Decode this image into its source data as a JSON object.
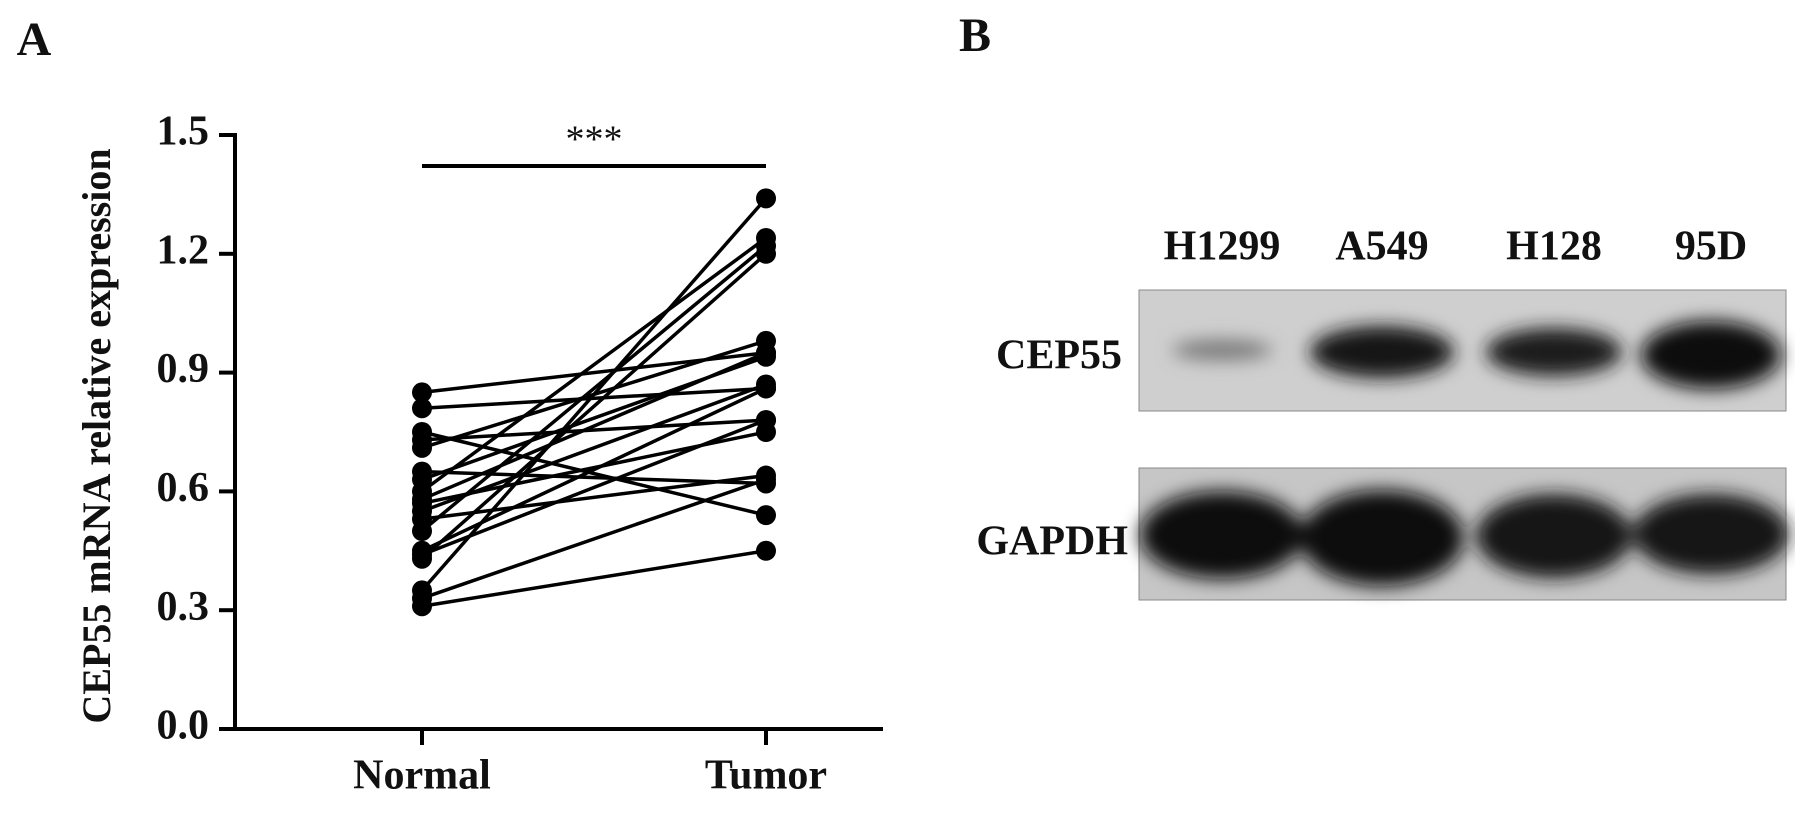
{
  "panels": [
    "A",
    "B"
  ],
  "chart_data": {
    "type": "line",
    "y_label": "CEP55 mRNA relative expression",
    "annotation": "***",
    "categories": [
      "Normal",
      "Tumor"
    ],
    "color": "#000000",
    "series": [
      {
        "values": [
          0.85,
          0.95
        ]
      },
      {
        "values": [
          0.81,
          0.86
        ]
      },
      {
        "values": [
          0.75,
          0.54
        ]
      },
      {
        "values": [
          0.73,
          0.78
        ]
      },
      {
        "values": [
          0.71,
          0.98
        ]
      },
      {
        "values": [
          0.65,
          0.62
        ]
      },
      {
        "values": [
          0.63,
          0.94
        ]
      },
      {
        "values": [
          0.6,
          1.24
        ]
      },
      {
        "values": [
          0.57,
          0.75
        ]
      },
      {
        "values": [
          0.55,
          0.87
        ]
      },
      {
        "values": [
          0.53,
          0.64
        ]
      },
      {
        "values": [
          0.5,
          1.22
        ]
      },
      {
        "values": [
          0.45,
          0.86
        ]
      },
      {
        "values": [
          0.43,
          1.2
        ]
      },
      {
        "values": [
          0.35,
          1.34
        ]
      },
      {
        "values": [
          0.33,
          0.63
        ]
      },
      {
        "values": [
          0.31,
          0.45
        ]
      },
      {
        "values": [
          0.58,
          0.95
        ]
      },
      {
        "values": [
          0.44,
          0.78
        ]
      }
    ],
    "ylim": [
      0,
      1.5
    ],
    "yticks": [
      {
        "value": 0,
        "label": "0.0"
      },
      0.3,
      0.6,
      0.9,
      1.2,
      1.5
    ]
  },
  "blot": {
    "lanes": [
      "H1299",
      "A549",
      "H128",
      "95D"
    ],
    "rows": [
      "CEP55",
      "GAPDH"
    ]
  }
}
